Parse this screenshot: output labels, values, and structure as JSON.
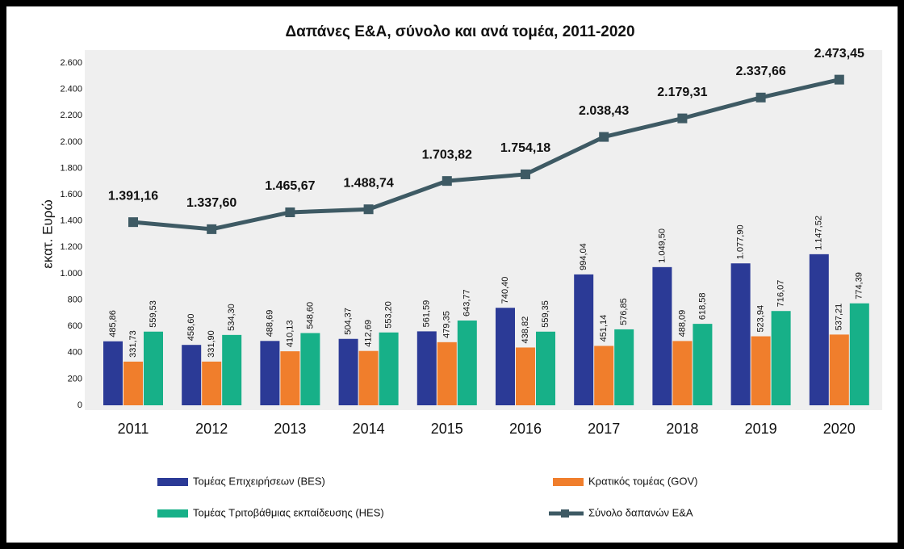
{
  "chart_data": {
    "type": "bar",
    "title": "Δαπάνες Ε&Α, σύνολο και ανά τομέα, 2011-2020",
    "y_axis_label": "εκατ. Ευρώ",
    "categories": [
      "2011",
      "2012",
      "2013",
      "2014",
      "2015",
      "2016",
      "2017",
      "2018",
      "2019",
      "2020"
    ],
    "series": [
      {
        "name": "Τομέας Επιχειρήσεων (BES)",
        "color": "#2b3a96",
        "type": "bar",
        "values": [
          485.86,
          458.6,
          488.69,
          504.37,
          561.59,
          740.4,
          994.04,
          1049.5,
          1077.9,
          1147.52
        ],
        "value_labels": [
          "485,86",
          "458,60",
          "488,69",
          "504,37",
          "561,59",
          "740,40",
          "994,04",
          "1.049,50",
          "1.077,90",
          "1.147,52"
        ]
      },
      {
        "name": "Κρατικός τομέας (GOV)",
        "color": "#f07e2c",
        "type": "bar",
        "values": [
          331.73,
          331.9,
          410.13,
          412.69,
          479.35,
          438.82,
          451.14,
          488.09,
          523.94,
          537.21
        ],
        "value_labels": [
          "331,73",
          "331,90",
          "410,13",
          "412,69",
          "479,35",
          "438,82",
          "451,14",
          "488,09",
          "523,94",
          "537,21"
        ]
      },
      {
        "name": "Τομέας Τριτοβάθμιας εκπαίδευσης (HES)",
        "color": "#17b088",
        "type": "bar",
        "values": [
          559.53,
          534.3,
          548.6,
          553.2,
          643.77,
          559.35,
          576.85,
          618.58,
          716.07,
          774.39
        ],
        "value_labels": [
          "559,53",
          "534,30",
          "548,60",
          "553,20",
          "643,77",
          "559,35",
          "576,85",
          "618,58",
          "716,07",
          "774,39"
        ]
      },
      {
        "name": "Σύνολο δαπανών Ε&Α",
        "color": "#3e5a64",
        "type": "line",
        "values": [
          1391.16,
          1337.6,
          1465.67,
          1488.74,
          1703.82,
          1754.18,
          2038.43,
          2179.31,
          2337.66,
          2473.45
        ],
        "value_labels": [
          "1.391,16",
          "1.337,60",
          "1.465,67",
          "1.488,74",
          "1.703,82",
          "1.754,18",
          "2.038,43",
          "2.179,31",
          "2.337,66",
          "2.473,45"
        ]
      }
    ],
    "ylim": [
      0,
      2600
    ],
    "yticks": [
      0,
      200,
      400,
      600,
      800,
      {
        "value": 1000,
        "label": "1.000"
      },
      {
        "value": 1200,
        "label": "1.200"
      },
      {
        "value": 1400,
        "label": "1.400"
      },
      {
        "value": 1600,
        "label": "1.600"
      },
      {
        "value": 1800,
        "label": "1.800"
      },
      {
        "value": 2000,
        "label": "2.000"
      },
      {
        "value": 2200,
        "label": "2.200"
      },
      {
        "value": 2400,
        "label": "2.400"
      },
      {
        "value": 2600,
        "label": "2.600"
      }
    ],
    "grid": false
  }
}
